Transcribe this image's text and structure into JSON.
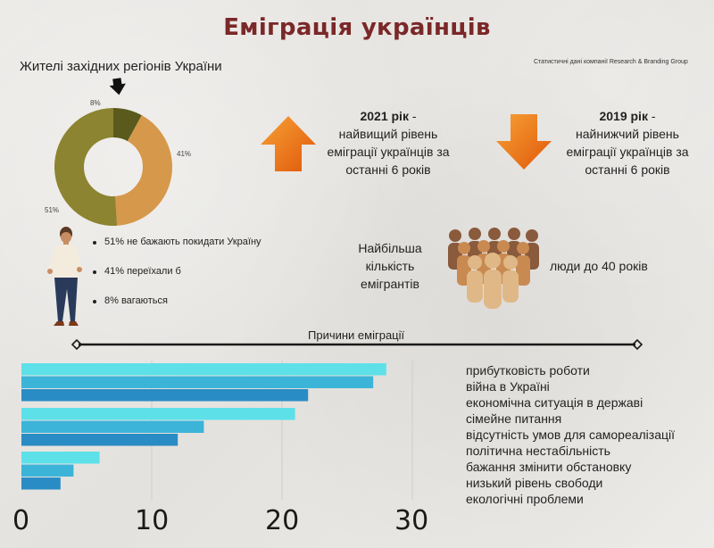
{
  "title": "Еміграція українців",
  "source": "Статистичні дані компанії Research & Branding Group",
  "donut": {
    "caption": "Жителі західних регіонів України",
    "legend": [
      "51% не бажають покидати Україну",
      "41% переїхали б",
      "8% вагаються"
    ]
  },
  "stats": {
    "year_2021": "2021 рік",
    "dash_2021": " -",
    "desc_2021": "найвищий рівень еміграції українців за останні 6 років",
    "year_2019": "2019 рік",
    "dash_2019": " -",
    "desc_2019": "найнижчий рівень еміграції українців за останні 6 років"
  },
  "crowd": {
    "text": "Найбільша кількість емігрантів",
    "age": "люди до 40 років"
  },
  "reasons_title": "Причини еміграції",
  "colors": {
    "title": "#7a2828",
    "donut_orange": "#d6984a",
    "donut_olive": "#8c8430",
    "donut_dark": "#5a5a1c",
    "bar_light": "#5ee0e8",
    "bar_mid": "#3cb4d8",
    "bar_dark": "#2a8cc4",
    "arrow_orange": "#f0841e"
  },
  "chart_data": [
    {
      "type": "pie",
      "variant": "donut",
      "categories": [
        "вагаються",
        "переїхали б",
        "не бажають покидати Україну"
      ],
      "values": [
        8,
        41,
        51
      ],
      "labels": [
        "8%",
        "41%",
        "51%"
      ],
      "colors": [
        "#5a5a1c",
        "#d6984a",
        "#8c8430"
      ]
    },
    {
      "type": "bar",
      "orientation": "horizontal",
      "categories": [
        "прибутковість роботи",
        "війна в Україні",
        "економічна ситуація в державі",
        "сімейне питання",
        "відсутність умов для самореалізації",
        "політична нестабільність",
        "бажання змінити обстановку",
        "низький рівень свободи",
        "екологічні проблеми"
      ],
      "values": [
        28,
        27,
        22,
        21,
        14,
        12,
        6,
        4,
        3
      ],
      "groups": [
        [
          0,
          1,
          2
        ],
        [
          3,
          4,
          5
        ],
        [
          6,
          7,
          8
        ]
      ],
      "bar_colors": [
        "#5ee0e8",
        "#3cb4d8",
        "#2a8cc4"
      ],
      "xlim": [
        0,
        30
      ],
      "x_ticks": [
        "0",
        "10",
        "20",
        "30"
      ],
      "grid": true
    }
  ]
}
